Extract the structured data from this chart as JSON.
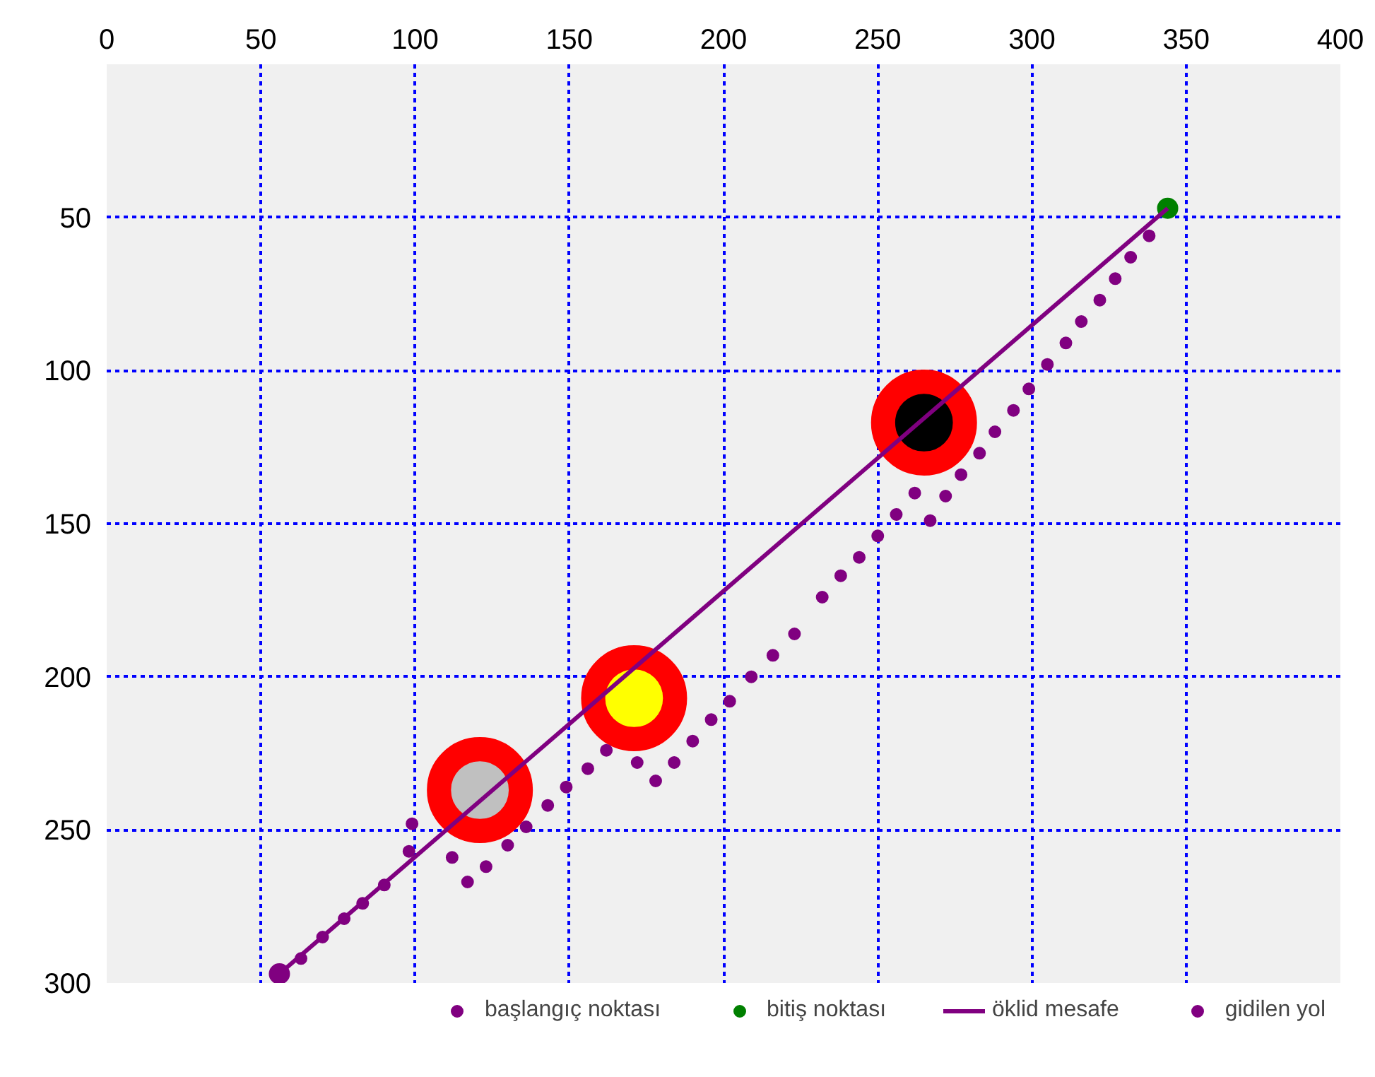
{
  "chart_data": {
    "type": "scatter",
    "xlim": [
      0,
      400
    ],
    "ylim": [
      300,
      0
    ],
    "xticks": [
      0,
      50,
      100,
      150,
      200,
      250,
      300,
      350,
      400
    ],
    "yticks": [
      50,
      100,
      150,
      200,
      250,
      300
    ],
    "grid": true,
    "legend": "bottom",
    "marker": "circle",
    "series": [
      {
        "type": "bubble",
        "color": "#ff0000",
        "x": [
          121,
          171,
          265
        ],
        "values": [
          237,
          207,
          117
        ],
        "sizes": [
          1,
          1,
          1
        ]
      },
      {
        "type": "bubble",
        "colors": [
          "#c0c0c0",
          "#ffff00",
          "#000000"
        ],
        "x": [
          121,
          171,
          265
        ],
        "values": [
          237,
          207,
          117
        ],
        "sizes": [
          0.29,
          0.29,
          0.29
        ]
      },
      {
        "name": "başlangıç noktası",
        "color": "#800080",
        "x": [
          56
        ],
        "values": [
          297
        ]
      },
      {
        "name": "bitiş noktası",
        "color": "#008000",
        "x": [
          344
        ],
        "values": [
          47
        ]
      },
      {
        "type": "line",
        "marker": "none",
        "name": "öklid mesafe",
        "color": "#800080",
        "x": [
          56,
          344
        ],
        "values": [
          297,
          47
        ]
      },
      {
        "name": "gidilen yol",
        "color": "#800080",
        "x": [
          63,
          70,
          77,
          83,
          90,
          98,
          99,
          112,
          117,
          123,
          130,
          136,
          143,
          149,
          156,
          162,
          172,
          178,
          184,
          190,
          196,
          202,
          209,
          216,
          223,
          232,
          238,
          244,
          250,
          256,
          262,
          267,
          272,
          277,
          283,
          288,
          294,
          299,
          305,
          311,
          316,
          322,
          327,
          332,
          338
        ],
        "values": [
          292,
          285,
          279,
          274,
          268,
          257,
          248,
          259,
          267,
          262,
          255,
          249,
          242,
          236,
          230,
          224,
          228,
          234,
          228,
          221,
          214,
          208,
          200,
          193,
          186,
          174,
          167,
          161,
          154,
          147,
          140,
          149,
          141,
          134,
          127,
          120,
          113,
          106,
          98,
          91,
          84,
          77,
          70,
          63,
          56
        ]
      }
    ]
  }
}
